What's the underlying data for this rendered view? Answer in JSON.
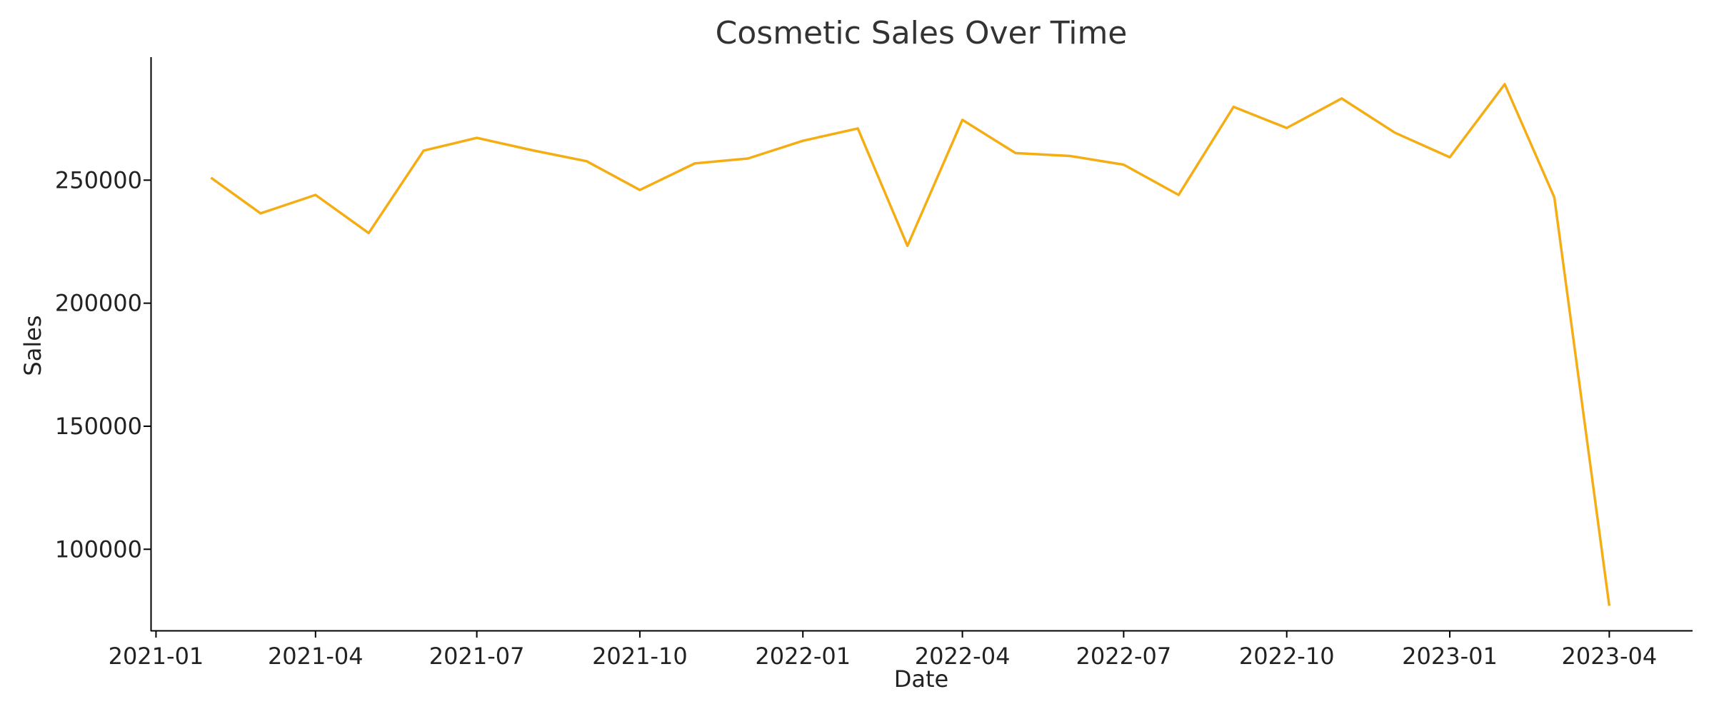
{
  "chart_data": {
    "type": "line",
    "title": "Cosmetic Sales Over Time",
    "xlabel": "Date",
    "ylabel": "Sales",
    "x_ticks": [
      "2021-01",
      "2021-04",
      "2021-07",
      "2021-10",
      "2022-01",
      "2022-04",
      "2022-07",
      "2022-10",
      "2023-01",
      "2023-04"
    ],
    "y_ticks": [
      100000,
      150000,
      200000,
      250000
    ],
    "xlim": [
      "2020-12-29",
      "2023-05-18"
    ],
    "ylim": [
      67000,
      300000
    ],
    "grid": false,
    "line_color": "#f5ad14",
    "series": [
      {
        "x": [
          "2021-02-01",
          "2021-03-01",
          "2021-04-01",
          "2021-05-01",
          "2021-06-01",
          "2021-07-01",
          "2021-08-01",
          "2021-09-01",
          "2021-10-01",
          "2021-11-01",
          "2021-12-01",
          "2022-01-01",
          "2022-02-01",
          "2022-03-01",
          "2022-04-01",
          "2022-05-01",
          "2022-06-01",
          "2022-07-01",
          "2022-08-01",
          "2022-09-01",
          "2022-10-01",
          "2022-11-01",
          "2022-12-01",
          "2023-01-01",
          "2023-02-01",
          "2023-03-01",
          "2023-04-01"
        ],
        "y": [
          251000,
          236500,
          244000,
          228500,
          262000,
          267200,
          262200,
          257700,
          246000,
          256800,
          258800,
          266000,
          271000,
          223300,
          274500,
          261000,
          259800,
          256300,
          244000,
          279800,
          271200,
          283200,
          269300,
          259300,
          289000,
          243000,
          77000
        ]
      }
    ]
  }
}
